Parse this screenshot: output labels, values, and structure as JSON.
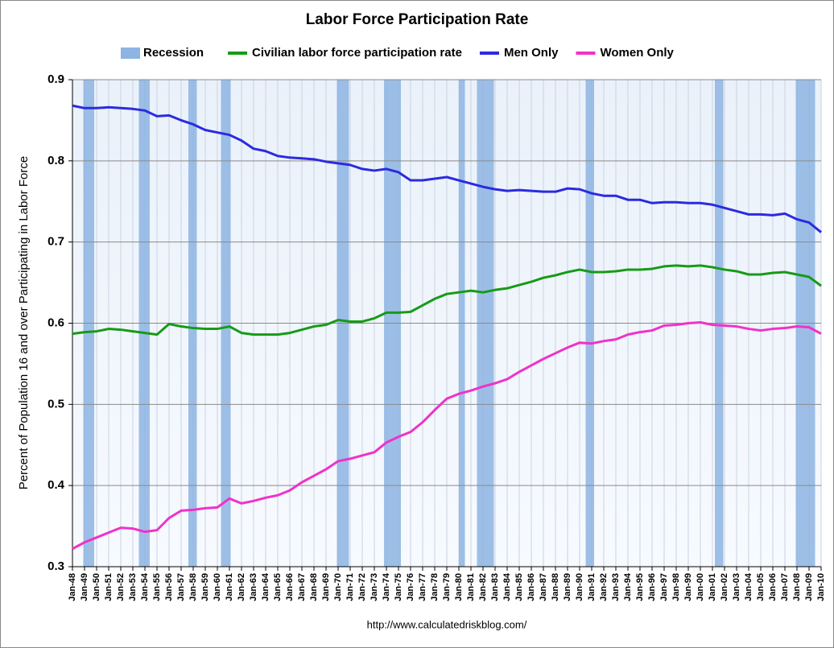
{
  "chart_data": {
    "type": "line",
    "title": "Labor Force Participation Rate",
    "y_label": "Percent of Population 16 and over Participating in Labor Force",
    "source": "http://www.calculatedriskblog.com/",
    "x": [
      1948,
      1949,
      1950,
      1951,
      1952,
      1953,
      1954,
      1955,
      1956,
      1957,
      1958,
      1959,
      1960,
      1961,
      1962,
      1963,
      1964,
      1965,
      1966,
      1967,
      1968,
      1969,
      1970,
      1971,
      1972,
      1973,
      1974,
      1975,
      1976,
      1977,
      1978,
      1979,
      1980,
      1981,
      1982,
      1983,
      1984,
      1985,
      1986,
      1987,
      1988,
      1989,
      1990,
      1991,
      1992,
      1993,
      1994,
      1995,
      1996,
      1997,
      1998,
      1999,
      2000,
      2001,
      2002,
      2003,
      2004,
      2005,
      2006,
      2007,
      2008,
      2009,
      2010
    ],
    "xlim": [
      1948,
      2010
    ],
    "xticks": [
      {
        "value": 1948,
        "label": "Jan-48"
      },
      {
        "value": 1949,
        "label": "Jan-49"
      },
      {
        "value": 1950,
        "label": "Jan-50"
      },
      {
        "value": 1951,
        "label": "Jan-51"
      },
      {
        "value": 1952,
        "label": "Jan-52"
      },
      {
        "value": 1953,
        "label": "Jan-53"
      },
      {
        "value": 1954,
        "label": "Jan-54"
      },
      {
        "value": 1955,
        "label": "Jan-55"
      },
      {
        "value": 1956,
        "label": "Jan-56"
      },
      {
        "value": 1957,
        "label": "Jan-57"
      },
      {
        "value": 1958,
        "label": "Jan-58"
      },
      {
        "value": 1959,
        "label": "Jan-59"
      },
      {
        "value": 1960,
        "label": "Jan-60"
      },
      {
        "value": 1961,
        "label": "Jan-61"
      },
      {
        "value": 1962,
        "label": "Jan-62"
      },
      {
        "value": 1963,
        "label": "Jan-63"
      },
      {
        "value": 1964,
        "label": "Jan-64"
      },
      {
        "value": 1965,
        "label": "Jan-65"
      },
      {
        "value": 1966,
        "label": "Jan-66"
      },
      {
        "value": 1967,
        "label": "Jan-67"
      },
      {
        "value": 1968,
        "label": "Jan-68"
      },
      {
        "value": 1969,
        "label": "Jan-69"
      },
      {
        "value": 1970,
        "label": "Jan-70"
      },
      {
        "value": 1971,
        "label": "Jan-71"
      },
      {
        "value": 1972,
        "label": "Jan-72"
      },
      {
        "value": 1973,
        "label": "Jan-73"
      },
      {
        "value": 1974,
        "label": "Jan-74"
      },
      {
        "value": 1975,
        "label": "Jan-75"
      },
      {
        "value": 1976,
        "label": "Jan-76"
      },
      {
        "value": 1977,
        "label": "Jan-77"
      },
      {
        "value": 1978,
        "label": "Jan-78"
      },
      {
        "value": 1979,
        "label": "Jan-79"
      },
      {
        "value": 1980,
        "label": "Jan-80"
      },
      {
        "value": 1981,
        "label": "Jan-81"
      },
      {
        "value": 1982,
        "label": "Jan-82"
      },
      {
        "value": 1983,
        "label": "Jan-83"
      },
      {
        "value": 1984,
        "label": "Jan-84"
      },
      {
        "value": 1985,
        "label": "Jan-85"
      },
      {
        "value": 1986,
        "label": "Jan-86"
      },
      {
        "value": 1987,
        "label": "Jan-87"
      },
      {
        "value": 1988,
        "label": "Jan-88"
      },
      {
        "value": 1989,
        "label": "Jan-89"
      },
      {
        "value": 1990,
        "label": "Jan-90"
      },
      {
        "value": 1991,
        "label": "Jan-91"
      },
      {
        "value": 1992,
        "label": "Jan-92"
      },
      {
        "value": 1993,
        "label": "Jan-93"
      },
      {
        "value": 1994,
        "label": "Jan-94"
      },
      {
        "value": 1995,
        "label": "Jan-95"
      },
      {
        "value": 1996,
        "label": "Jan-96"
      },
      {
        "value": 1997,
        "label": "Jan-97"
      },
      {
        "value": 1998,
        "label": "Jan-98"
      },
      {
        "value": 1999,
        "label": "Jan-99"
      },
      {
        "value": 2000,
        "label": "Jan-00"
      },
      {
        "value": 2001,
        "label": "Jan-01"
      },
      {
        "value": 2002,
        "label": "Jan-02"
      },
      {
        "value": 2003,
        "label": "Jan-03"
      },
      {
        "value": 2004,
        "label": "Jan-04"
      },
      {
        "value": 2005,
        "label": "Jan-05"
      },
      {
        "value": 2006,
        "label": "Jan-06"
      },
      {
        "value": 2007,
        "label": "Jan-07"
      },
      {
        "value": 2008,
        "label": "Jan-08"
      },
      {
        "value": 2009,
        "label": "Jan-09"
      },
      {
        "value": 2010,
        "label": "Jan-10"
      }
    ],
    "ylim": [
      0.3,
      0.9
    ],
    "yticks": [
      0.3,
      0.4,
      0.5,
      0.6,
      0.7,
      0.8,
      0.9
    ],
    "grid": true,
    "recessions": {
      "name": "Recession",
      "color": "#8db4e2",
      "spans": [
        [
          1948.9,
          1949.8
        ],
        [
          1953.5,
          1954.4
        ],
        [
          1957.6,
          1958.3
        ],
        [
          1960.3,
          1961.1
        ],
        [
          1969.9,
          1970.9
        ],
        [
          1973.8,
          1975.2
        ],
        [
          1980.0,
          1980.5
        ],
        [
          1981.5,
          1982.9
        ],
        [
          1990.5,
          1991.2
        ],
        [
          2001.2,
          2001.9
        ],
        [
          2007.9,
          2009.5
        ]
      ]
    },
    "series": [
      {
        "name": "Civilian labor force participation rate",
        "color": "#169b16",
        "values": [
          0.587,
          0.589,
          0.59,
          0.593,
          0.592,
          0.59,
          0.588,
          0.586,
          0.599,
          0.596,
          0.594,
          0.593,
          0.593,
          0.596,
          0.588,
          0.586,
          0.586,
          0.586,
          0.588,
          0.592,
          0.596,
          0.598,
          0.604,
          0.602,
          0.602,
          0.606,
          0.613,
          0.613,
          0.614,
          0.622,
          0.63,
          0.636,
          0.638,
          0.64,
          0.638,
          0.641,
          0.643,
          0.647,
          0.651,
          0.656,
          0.659,
          0.663,
          0.666,
          0.663,
          0.663,
          0.664,
          0.666,
          0.666,
          0.667,
          0.67,
          0.671,
          0.67,
          0.671,
          0.669,
          0.666,
          0.664,
          0.66,
          0.66,
          0.662,
          0.663,
          0.66,
          0.657,
          0.646
        ]
      },
      {
        "name": "Men Only",
        "color": "#2b2be0",
        "values": [
          0.868,
          0.865,
          0.865,
          0.866,
          0.865,
          0.864,
          0.862,
          0.855,
          0.856,
          0.85,
          0.845,
          0.838,
          0.835,
          0.832,
          0.825,
          0.815,
          0.812,
          0.806,
          0.804,
          0.803,
          0.802,
          0.799,
          0.797,
          0.795,
          0.79,
          0.788,
          0.79,
          0.786,
          0.776,
          0.776,
          0.778,
          0.78,
          0.776,
          0.772,
          0.768,
          0.765,
          0.763,
          0.764,
          0.763,
          0.762,
          0.762,
          0.766,
          0.765,
          0.76,
          0.757,
          0.757,
          0.752,
          0.752,
          0.748,
          0.749,
          0.749,
          0.748,
          0.748,
          0.746,
          0.742,
          0.738,
          0.734,
          0.734,
          0.733,
          0.735,
          0.728,
          0.724,
          0.712
        ]
      },
      {
        "name": "Women Only",
        "color": "#f032c8",
        "values": [
          0.322,
          0.33,
          0.336,
          0.342,
          0.348,
          0.347,
          0.343,
          0.345,
          0.36,
          0.369,
          0.37,
          0.372,
          0.373,
          0.384,
          0.378,
          0.381,
          0.385,
          0.388,
          0.394,
          0.404,
          0.412,
          0.42,
          0.43,
          0.433,
          0.437,
          0.441,
          0.453,
          0.46,
          0.466,
          0.478,
          0.493,
          0.507,
          0.513,
          0.517,
          0.522,
          0.526,
          0.531,
          0.54,
          0.548,
          0.556,
          0.563,
          0.57,
          0.576,
          0.575,
          0.578,
          0.58,
          0.586,
          0.589,
          0.591,
          0.597,
          0.598,
          0.6,
          0.601,
          0.598,
          0.597,
          0.596,
          0.593,
          0.591,
          0.593,
          0.594,
          0.596,
          0.595,
          0.587
        ]
      }
    ]
  }
}
